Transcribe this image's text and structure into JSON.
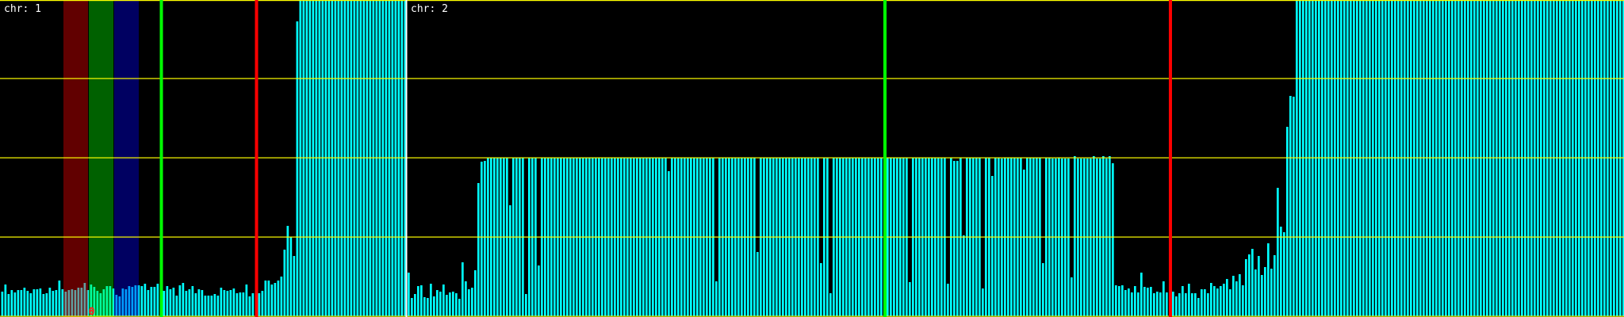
{
  "colors": {
    "background": "#000000",
    "bar": "#00ffff",
    "gridline": "#ffff00",
    "divider": "#ffffff",
    "label": "#ffffff"
  },
  "chart_data": {
    "type": "bar",
    "ylim": [
      0,
      4
    ],
    "grid": true,
    "gridlines_y": [
      0,
      1,
      2,
      3,
      4
    ],
    "panels": [
      {
        "label": "chr: 1",
        "values": [
          0.31,
          0.4,
          0.28,
          0.33,
          0.3,
          0.33,
          0.33,
          0.36,
          0.32,
          0.29,
          0.34,
          0.34,
          0.35,
          0.28,
          0.29,
          0.36,
          0.32,
          0.33,
          0.45,
          0.34,
          0.31,
          0.33,
          0.34,
          0.33,
          0.36,
          0.36,
          0.42,
          0.33,
          0.4,
          0.37,
          0.32,
          0.29,
          0.34,
          0.38,
          0.38,
          0.35,
          0.27,
          0.25,
          0.35,
          0.34,
          0.38,
          0.37,
          0.39,
          0.39,
          0.38,
          0.41,
          0.33,
          0.37,
          0.37,
          0.41,
          0.37,
          0.32,
          0.38,
          0.34,
          0.36,
          0.26,
          0.39,
          0.42,
          0.32,
          0.34,
          0.38,
          0.29,
          0.34,
          0.33,
          0.26,
          0.26,
          0.26,
          0.28,
          0.26,
          0.36,
          0.33,
          0.32,
          0.33,
          0.35,
          0.29,
          0.3,
          0.3,
          0.4,
          0.25,
          0.29,
          0.28,
          0.29,
          0.32,
          0.45,
          0.45,
          0.4,
          0.42,
          0.45,
          0.5,
          0.84,
          1.14,
          1.0,
          0.76,
          3.72,
          4,
          4,
          4,
          4,
          4,
          4,
          4,
          4,
          4,
          4,
          4,
          4,
          4,
          4,
          4,
          4,
          4,
          4,
          4,
          4,
          4,
          4,
          4,
          4,
          4,
          4,
          4,
          4,
          4,
          4,
          4,
          4,
          4,
          4
        ],
        "bands": [
          {
            "start": 20,
            "end": 27,
            "color": "#ff0000"
          },
          {
            "start": 28,
            "end": 35,
            "color": "#00ff00"
          },
          {
            "start": 36,
            "end": 43,
            "color": "#0000ff"
          }
        ],
        "markers": [
          {
            "position": 50.5,
            "color": "#00ff00"
          },
          {
            "position": 80.5,
            "color": "#ff0000"
          }
        ],
        "annotations": [
          {
            "text": "0",
            "position": 28.5,
            "color": "#ff2020"
          }
        ]
      },
      {
        "label": "chr: 2",
        "values": [
          0.55,
          0.23,
          0.28,
          0.38,
          0.39,
          0.24,
          0.23,
          0.41,
          0.25,
          0.33,
          0.31,
          0.4,
          0.27,
          0.3,
          0.31,
          0.29,
          0.22,
          0.68,
          0.44,
          0.34,
          0.36,
          0.58,
          1.68,
          1.95,
          1.96,
          2,
          2,
          2,
          2,
          2,
          2,
          2,
          1.4,
          2,
          2,
          2,
          2,
          0.28,
          2,
          2,
          2,
          0.64,
          2,
          2,
          2,
          2,
          2,
          2,
          2,
          2,
          2,
          2,
          2,
          2,
          2,
          2,
          2,
          2,
          2,
          2,
          2,
          2,
          2,
          2,
          2,
          2,
          2,
          2,
          2,
          2,
          2,
          2,
          2,
          2,
          2,
          2,
          2,
          2,
          2,
          2,
          2,
          2,
          1.83,
          2,
          2,
          2,
          2,
          2,
          2,
          2,
          2,
          2,
          2,
          2,
          2,
          2,
          2,
          0.44,
          2,
          2,
          2,
          2,
          2,
          2,
          2,
          2,
          2,
          2,
          2,
          2,
          0.81,
          2,
          2,
          2,
          2,
          2,
          2,
          2,
          2,
          2,
          2,
          2,
          2,
          2,
          2,
          2,
          2,
          2,
          2,
          2,
          0.67,
          2,
          2,
          0.29,
          2,
          2,
          2,
          2,
          2,
          2,
          2,
          2,
          2,
          2,
          2,
          2,
          2,
          2,
          2,
          2,
          2,
          2,
          2,
          2,
          2,
          2,
          2,
          2,
          0.43,
          2,
          2,
          2,
          2,
          2,
          2,
          2,
          2,
          2,
          2,
          2,
          0.41,
          2,
          1.96,
          1.96,
          2,
          1.02,
          2,
          2,
          2,
          2,
          2,
          0.35,
          2,
          2,
          1.77,
          2,
          2,
          1.99,
          2,
          2,
          2,
          2,
          2,
          2,
          1.85,
          2,
          2,
          2,
          2,
          2,
          0.67,
          2,
          2,
          1.99,
          1.99,
          2,
          1.99,
          1.99,
          1.99,
          0.49,
          2.02,
          1.99,
          1.99,
          1.99,
          1.99,
          1.99,
          2.02,
          1.99,
          1.99,
          2.02,
          1.99,
          2.02,
          1.93,
          0.39,
          0.38,
          0.39,
          0.33,
          0.35,
          0.3,
          0.38,
          0.3,
          0.55,
          0.37,
          0.36,
          0.37,
          0.29,
          0.31,
          0.3,
          0.44,
          0.3,
          0.26,
          0.31,
          0.25,
          0.29,
          0.38,
          0.29,
          0.41,
          0.29,
          0.29,
          0.23,
          0.34,
          0.34,
          0.29,
          0.42,
          0.38,
          0.35,
          0.38,
          0.41,
          0.47,
          0.34,
          0.51,
          0.44,
          0.53,
          0.39,
          0.72,
          0.78,
          0.85,
          0.59,
          0.76,
          0.52,
          0.62,
          0.92,
          0.6,
          0.77,
          1.62,
          1.13,
          1.06,
          2.39,
          2.78,
          2.77,
          4,
          4,
          4,
          4,
          4,
          4,
          4,
          4,
          4,
          4,
          4,
          4,
          4,
          4,
          4,
          4,
          4,
          4,
          4,
          4,
          4,
          4,
          4,
          4,
          4,
          4,
          4,
          4,
          4,
          4,
          4,
          4,
          4,
          4,
          4,
          4,
          4,
          4,
          4,
          4,
          4,
          4,
          4,
          4,
          4,
          4,
          4,
          4,
          4,
          4,
          4,
          4,
          4,
          4,
          4,
          4,
          4,
          4,
          4,
          4,
          4,
          4,
          4,
          4,
          4,
          4,
          4,
          4,
          4,
          4,
          4,
          4,
          4,
          4,
          4,
          4,
          4,
          4,
          4,
          4,
          4,
          4,
          4,
          4,
          4,
          4,
          4,
          4,
          4,
          4,
          4,
          4,
          4,
          4,
          4,
          4,
          4,
          4,
          4,
          4,
          4,
          4,
          4,
          4
        ],
        "bands": [],
        "markers": [
          {
            "position": 150.5,
            "color": "#00ff00"
          },
          {
            "position": 240.5,
            "color": "#ff0000"
          }
        ],
        "annotations": []
      }
    ]
  }
}
